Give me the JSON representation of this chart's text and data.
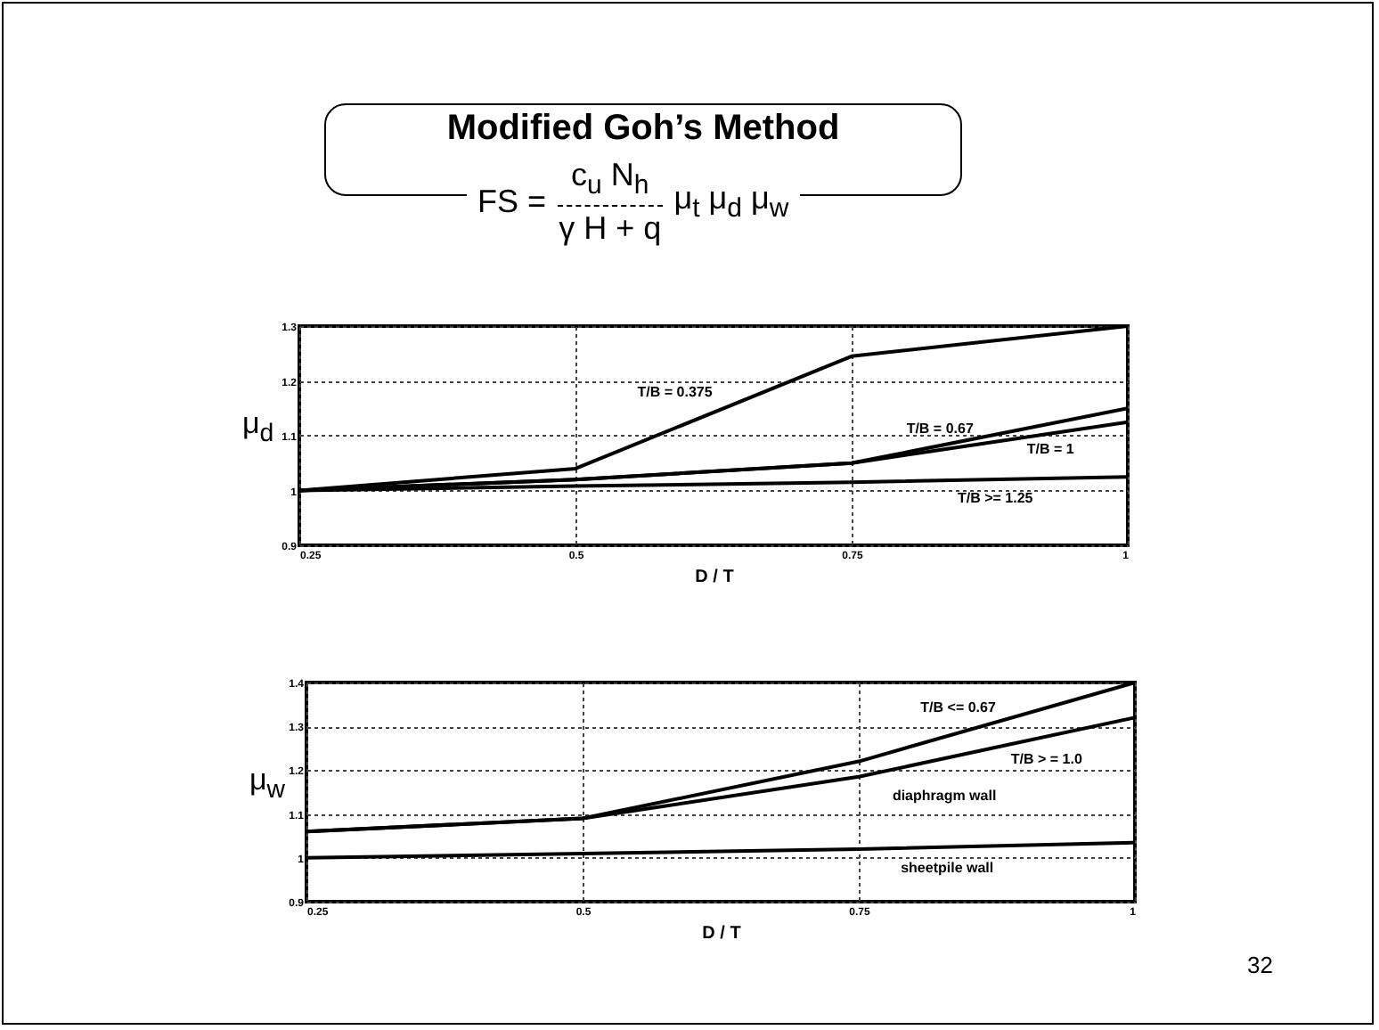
{
  "chart_data": [
    {
      "type": "other",
      "title": "Modified Goh’s Method",
      "annotations": [
        "FS =",
        "c$_{u}$ N$_{h}$",
        "γ H + q",
        "μ$_{t}$ μ$_{d}$ μ$_{w}$",
        "32"
      ]
    },
    {
      "type": "line",
      "xlabel": "D / T",
      "ylabel": "μ$_{d}$",
      "x": [
        0.25,
        0.5,
        0.75,
        1
      ],
      "xlim": [
        0.25,
        1
      ],
      "xticks": [
        0.25,
        0.5,
        0.75,
        1
      ],
      "ylim": [
        0.9,
        1.3
      ],
      "yticks": [
        0.9,
        1,
        1.1,
        1.2,
        1.3
      ],
      "grid": true,
      "series": [
        {
          "name": "T/B = 0.375",
          "color": "#000000",
          "values": [
            1.0,
            1.04,
            1.245,
            1.3
          ]
        },
        {
          "name": "T/B = 0.67",
          "color": "#000000",
          "values": [
            1.0,
            1.02,
            1.05,
            1.15
          ]
        },
        {
          "name": "T/B = 1",
          "color": "#000000",
          "values": [
            1.0,
            1.02,
            1.05,
            1.125
          ]
        },
        {
          "name": "T/B >= 1.25",
          "color": "#000000",
          "values": [
            1.0,
            1.008,
            1.015,
            1.025
          ]
        }
      ]
    },
    {
      "type": "line",
      "xlabel": "D / T",
      "ylabel": "μ$_{w}$",
      "x": [
        0.25,
        0.5,
        0.75,
        1
      ],
      "xlim": [
        0.25,
        1
      ],
      "xticks": [
        0.25,
        0.5,
        0.75,
        1
      ],
      "ylim": [
        0.9,
        1.4
      ],
      "yticks": [
        0.9,
        1,
        1.1,
        1.2,
        1.3,
        1.4
      ],
      "grid": true,
      "annotations": [
        "diaphragm wall"
      ],
      "series": [
        {
          "name": "T/B <= 0.67",
          "color": "#000000",
          "values": [
            1.06,
            1.09,
            1.22,
            1.4
          ]
        },
        {
          "name": "T/B > = 1.0",
          "color": "#000000",
          "values": [
            1.06,
            1.09,
            1.185,
            1.32
          ]
        },
        {
          "name": "sheetpile wall",
          "color": "#000000",
          "values": [
            1.0,
            1.01,
            1.02,
            1.035
          ]
        }
      ]
    }
  ]
}
